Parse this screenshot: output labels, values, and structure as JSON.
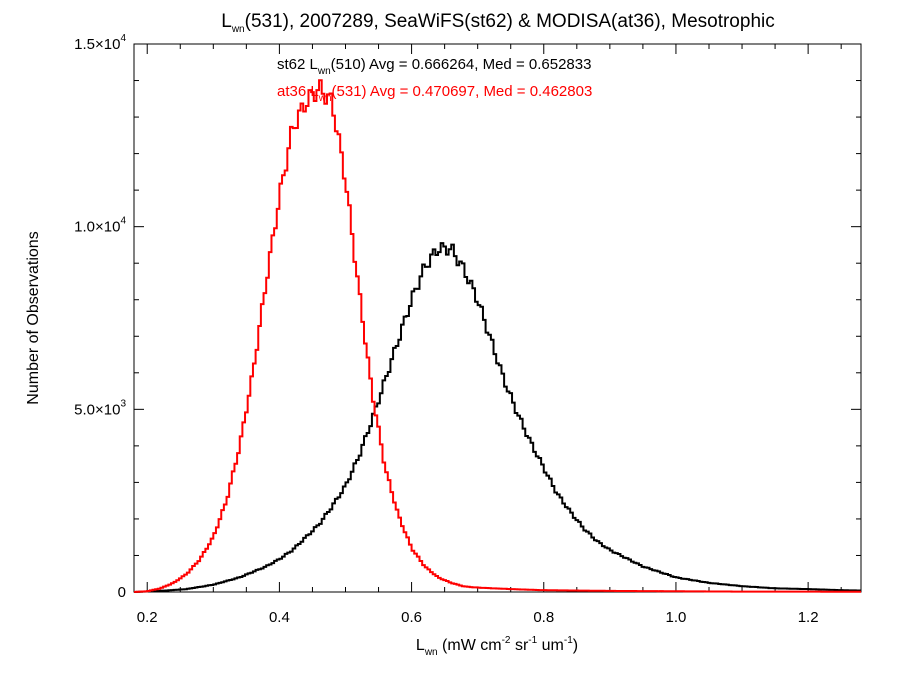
{
  "chart_data": {
    "type": "line",
    "title": {
      "pre": "L",
      "sub": "wn",
      "post": "(531), 2007289, SeaWiFS(st62) & MODISA(at36), Mesotrophic"
    },
    "xlabel": {
      "pre": "L",
      "sub": "wn",
      "unit_a": " (mW cm",
      "sup_a": "-2",
      "unit_b": " sr",
      "sup_b": "-1",
      "unit_c": " um",
      "sup_c": "-1",
      "unit_d": ")"
    },
    "ylabel": "Number of Observations",
    "xlim": [
      0.18,
      1.28
    ],
    "ylim": [
      0,
      15000
    ],
    "x_ticks": [
      {
        "value": 0.2,
        "label": "0.2"
      },
      {
        "value": 0.4,
        "label": "0.4"
      },
      {
        "value": 0.6,
        "label": "0.6"
      },
      {
        "value": 0.8,
        "label": "0.8"
      },
      {
        "value": 1.0,
        "label": "1.0"
      },
      {
        "value": 1.2,
        "label": "1.2"
      }
    ],
    "y_ticks": [
      {
        "value": 0,
        "mant": "0",
        "exp": ""
      },
      {
        "value": 5000,
        "mant": "5.0×10",
        "exp": "3"
      },
      {
        "value": 10000,
        "mant": "1.0×10",
        "exp": "4"
      },
      {
        "value": 15000,
        "mant": "1.5×10",
        "exp": "4"
      }
    ],
    "grid": false,
    "annotations": [
      {
        "color": "#000000",
        "pre": "st62 L",
        "sub": "wn",
        "post": "(510) Avg = 0.666264, Med = 0.652833"
      },
      {
        "color": "#ff0000",
        "pre": "at36 L",
        "sub": "wn",
        "post": "(531) Avg = 0.470697, Med = 0.462803"
      }
    ],
    "series": [
      {
        "color": "#000000",
        "x": [
          0.18,
          0.22,
          0.26,
          0.3,
          0.34,
          0.38,
          0.4,
          0.42,
          0.44,
          0.46,
          0.48,
          0.5,
          0.52,
          0.54,
          0.56,
          0.58,
          0.6,
          0.62,
          0.64,
          0.66,
          0.68,
          0.7,
          0.72,
          0.74,
          0.76,
          0.78,
          0.8,
          0.82,
          0.84,
          0.86,
          0.88,
          0.9,
          0.95,
          1.0,
          1.05,
          1.1,
          1.15,
          1.2,
          1.25,
          1.28
        ],
        "y": [
          0,
          30,
          80,
          200,
          400,
          700,
          900,
          1150,
          1500,
          1850,
          2350,
          2900,
          3700,
          4700,
          5800,
          6900,
          8000,
          8900,
          9400,
          9400,
          8800,
          8000,
          6900,
          5800,
          4900,
          4100,
          3400,
          2700,
          2200,
          1750,
          1400,
          1150,
          700,
          400,
          250,
          160,
          100,
          80,
          50,
          40
        ]
      },
      {
        "color": "#ff0000",
        "x": [
          0.18,
          0.2,
          0.22,
          0.24,
          0.26,
          0.28,
          0.3,
          0.32,
          0.34,
          0.36,
          0.38,
          0.4,
          0.42,
          0.44,
          0.46,
          0.48,
          0.5,
          0.52,
          0.54,
          0.56,
          0.58,
          0.6,
          0.62,
          0.64,
          0.66,
          0.68,
          0.7,
          0.75,
          0.8,
          0.9,
          1.0,
          1.1,
          1.2,
          1.28
        ],
        "y": [
          0,
          20,
          100,
          250,
          500,
          900,
          1500,
          2500,
          4000,
          6000,
          8500,
          10800,
          12700,
          13400,
          13800,
          13400,
          11300,
          8300,
          5500,
          3400,
          2100,
          1200,
          700,
          400,
          250,
          150,
          120,
          80,
          50,
          30,
          20,
          10,
          10,
          5
        ]
      }
    ]
  }
}
